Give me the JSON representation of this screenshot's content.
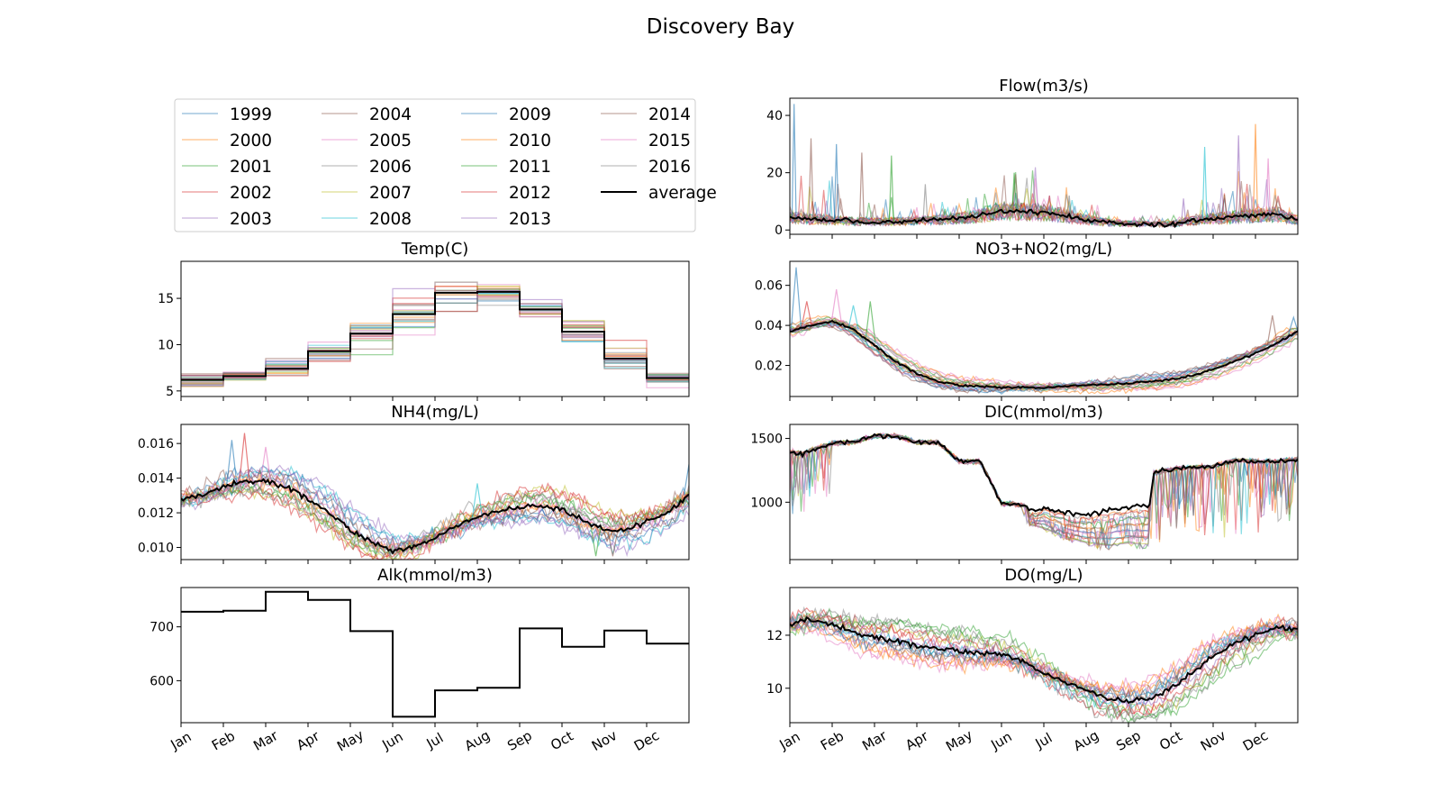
{
  "title": "Discovery Bay",
  "colors": {
    "years": [
      "#1f77b4",
      "#ff7f0e",
      "#2ca02c",
      "#d62728",
      "#9467bd",
      "#8c564b",
      "#e377c2",
      "#7f7f7f",
      "#bcbd22",
      "#17becf",
      "#1f77b4",
      "#ff7f0e",
      "#2ca02c",
      "#d62728",
      "#9467bd",
      "#8c564b",
      "#e377c2",
      "#7f7f7f"
    ],
    "average": "#000000"
  },
  "legend": {
    "placement": "upper-left panel",
    "entries": [
      "1999",
      "2000",
      "2001",
      "2002",
      "2003",
      "2004",
      "2005",
      "2006",
      "2007",
      "2008",
      "2009",
      "2010",
      "2011",
      "2012",
      "2013",
      "2014",
      "2015",
      "2016",
      "average"
    ]
  },
  "chart_data": [
    {
      "type": "line",
      "title": "Flow(m3/s)",
      "xlabel": "",
      "ylabel": "",
      "xticks": [
        "Jan",
        "Feb",
        "Mar",
        "Apr",
        "May",
        "Jun",
        "Jul",
        "Aug",
        "Sep",
        "Oct",
        "Nov",
        "Dec"
      ],
      "xtick_labels_shown": false,
      "ylim": [
        -1.5,
        46
      ],
      "yticks": [
        0,
        20,
        40
      ],
      "years": [
        "1999",
        "2000",
        "2001",
        "2002",
        "2003",
        "2004",
        "2005",
        "2006",
        "2007",
        "2008",
        "2009",
        "2010",
        "2011",
        "2012",
        "2013",
        "2014",
        "2015",
        "2016"
      ],
      "average_points": [
        [
          0,
          4.5
        ],
        [
          0.5,
          3.8
        ],
        [
          1,
          3.5
        ],
        [
          1.5,
          3.0
        ],
        [
          2,
          2.8
        ],
        [
          2.5,
          3.0
        ],
        [
          3,
          3.2
        ],
        [
          3.5,
          3.6
        ],
        [
          4,
          4.0
        ],
        [
          4.5,
          5.2
        ],
        [
          5,
          6.8
        ],
        [
          5.5,
          6.5
        ],
        [
          6,
          6.0
        ],
        [
          6.5,
          5.0
        ],
        [
          7,
          3.5
        ],
        [
          7.5,
          2.6
        ],
        [
          8,
          2.2
        ],
        [
          8.5,
          2.0
        ],
        [
          9,
          2.0
        ],
        [
          9.5,
          3.2
        ],
        [
          10,
          4.0
        ],
        [
          10.5,
          4.5
        ],
        [
          11,
          5.0
        ],
        [
          11.5,
          5.5
        ],
        [
          12,
          3.5
        ]
      ],
      "year_points": [
        [
          0,
          9
        ],
        [
          0.3,
          15
        ],
        [
          0.6,
          6
        ],
        [
          1,
          12
        ],
        [
          1.4,
          6
        ],
        [
          2,
          5
        ],
        [
          2.5,
          8
        ],
        [
          3,
          4
        ],
        [
          4,
          5
        ],
        [
          5,
          10
        ],
        [
          5.5,
          14
        ],
        [
          6,
          11
        ],
        [
          6.5,
          7
        ],
        [
          7,
          4
        ],
        [
          8,
          2
        ],
        [
          9,
          2
        ],
        [
          10,
          5
        ],
        [
          10.5,
          12
        ],
        [
          11,
          9
        ],
        [
          11.5,
          14
        ],
        [
          12,
          4
        ]
      ],
      "year_spikes": [
        [
          0.1,
          44
        ],
        [
          0.5,
          32
        ],
        [
          1.1,
          30
        ],
        [
          1.7,
          27
        ],
        [
          2.4,
          26
        ],
        [
          3.2,
          16
        ],
        [
          5.3,
          20
        ],
        [
          6.6,
          12
        ],
        [
          9.3,
          11
        ],
        [
          9.8,
          29
        ],
        [
          10.6,
          33
        ],
        [
          11.0,
          37
        ],
        [
          11.3,
          25
        ]
      ]
    },
    {
      "type": "line",
      "title": "Temp(C)",
      "xlabel": "",
      "ylabel": "",
      "xticks": [
        "Jan",
        "Feb",
        "Mar",
        "Apr",
        "May",
        "Jun",
        "Jul",
        "Aug",
        "Sep",
        "Oct",
        "Nov",
        "Dec"
      ],
      "xtick_labels_shown": false,
      "ylim": [
        4.4,
        19.0
      ],
      "yticks": [
        5,
        10,
        15
      ],
      "years": [
        "1999",
        "2000",
        "2001",
        "2002",
        "2003",
        "2004",
        "2005",
        "2006",
        "2007",
        "2008",
        "2009",
        "2010",
        "2011",
        "2012",
        "2013",
        "2014",
        "2015",
        "2016"
      ],
      "monthly_average": [
        6.2,
        6.6,
        7.4,
        9.3,
        11.2,
        13.3,
        15.6,
        15.7,
        13.8,
        11.4,
        8.5,
        6.4
      ],
      "monthly_spread": [
        0.6,
        0.8,
        1.2,
        1.4,
        1.5,
        1.8,
        1.5,
        1.2,
        0.8,
        1.0,
        1.2,
        0.8
      ]
    },
    {
      "type": "line",
      "title": "NO3+NO2(mg/L)",
      "xlabel": "",
      "ylabel": "",
      "xticks": [
        "Jan",
        "Feb",
        "Mar",
        "Apr",
        "May",
        "Jun",
        "Jul",
        "Aug",
        "Sep",
        "Oct",
        "Nov",
        "Dec"
      ],
      "xtick_labels_shown": false,
      "ylim": [
        0.0045,
        0.072
      ],
      "yticks": [
        0.02,
        0.04,
        0.06
      ],
      "years": [
        "1999",
        "2000",
        "2001",
        "2002",
        "2003",
        "2004",
        "2005",
        "2006",
        "2007",
        "2008",
        "2009",
        "2010",
        "2011",
        "2012",
        "2013",
        "2014",
        "2015",
        "2016"
      ],
      "average_points": [
        [
          0,
          0.037
        ],
        [
          0.5,
          0.04
        ],
        [
          1,
          0.042
        ],
        [
          1.5,
          0.038
        ],
        [
          2,
          0.03
        ],
        [
          2.5,
          0.022
        ],
        [
          3,
          0.016
        ],
        [
          3.5,
          0.012
        ],
        [
          4,
          0.01
        ],
        [
          4.5,
          0.0095
        ],
        [
          5,
          0.009
        ],
        [
          6,
          0.009
        ],
        [
          7,
          0.01
        ],
        [
          8,
          0.011
        ],
        [
          9,
          0.013
        ],
        [
          9.5,
          0.015
        ],
        [
          10,
          0.018
        ],
        [
          10.5,
          0.022
        ],
        [
          11,
          0.026
        ],
        [
          11.5,
          0.031
        ],
        [
          12,
          0.037
        ]
      ],
      "spread": 0.004,
      "year_spikes": [
        [
          0.15,
          0.069
        ],
        [
          0.4,
          0.052
        ],
        [
          1.1,
          0.058
        ],
        [
          1.5,
          0.05
        ],
        [
          1.9,
          0.052
        ],
        [
          11.4,
          0.045
        ],
        [
          11.9,
          0.044
        ]
      ]
    },
    {
      "type": "line",
      "title": "NH4(mg/L)",
      "xlabel": "",
      "ylabel": "",
      "xticks": [
        "Jan",
        "Feb",
        "Mar",
        "Apr",
        "May",
        "Jun",
        "Jul",
        "Aug",
        "Sep",
        "Oct",
        "Nov",
        "Dec"
      ],
      "xtick_labels_shown": false,
      "ylim": [
        0.0093,
        0.0171
      ],
      "yticks": [
        0.01,
        0.012,
        0.014,
        0.016
      ],
      "years": [
        "1999",
        "2000",
        "2001",
        "2002",
        "2003",
        "2004",
        "2005",
        "2006",
        "2007",
        "2008",
        "2009",
        "2010",
        "2011",
        "2012",
        "2013",
        "2014",
        "2015",
        "2016"
      ],
      "average_points": [
        [
          0,
          0.0128
        ],
        [
          0.5,
          0.013
        ],
        [
          1,
          0.0135
        ],
        [
          1.5,
          0.0138
        ],
        [
          2,
          0.0138
        ],
        [
          2.5,
          0.0135
        ],
        [
          3,
          0.0128
        ],
        [
          3.5,
          0.012
        ],
        [
          4,
          0.011
        ],
        [
          4.5,
          0.0103
        ],
        [
          5,
          0.0098
        ],
        [
          5.5,
          0.01
        ],
        [
          6,
          0.0106
        ],
        [
          6.5,
          0.0112
        ],
        [
          7,
          0.0117
        ],
        [
          7.5,
          0.0121
        ],
        [
          8,
          0.0123
        ],
        [
          8.5,
          0.0124
        ],
        [
          9,
          0.0122
        ],
        [
          9.5,
          0.0116
        ],
        [
          10,
          0.011
        ],
        [
          10.5,
          0.011
        ],
        [
          11,
          0.0115
        ],
        [
          11.5,
          0.012
        ],
        [
          12,
          0.013
        ]
      ],
      "spread": 0.0012,
      "year_spikes": [
        [
          1.2,
          0.0162
        ],
        [
          1.5,
          0.0166
        ],
        [
          2.0,
          0.0158
        ],
        [
          7.0,
          0.0137
        ],
        [
          9.8,
          0.0095
        ],
        [
          10.2,
          0.0095
        ],
        [
          12,
          0.0148
        ]
      ]
    },
    {
      "type": "line",
      "title": "DIC(mmol/m3)",
      "xlabel": "",
      "ylabel": "",
      "xticks": [
        "Jan",
        "Feb",
        "Mar",
        "Apr",
        "May",
        "Jun",
        "Jul",
        "Aug",
        "Sep",
        "Oct",
        "Nov",
        "Dec"
      ],
      "xtick_labels_shown": false,
      "ylim": [
        550,
        1610
      ],
      "yticks": [
        1000,
        1500
      ],
      "years": [
        "1999",
        "2000",
        "2001",
        "2002",
        "2003",
        "2004",
        "2005",
        "2006",
        "2007",
        "2008",
        "2009",
        "2010",
        "2011",
        "2012",
        "2013",
        "2014",
        "2015",
        "2016"
      ],
      "average_points": [
        [
          0,
          1400
        ],
        [
          0.3,
          1380
        ],
        [
          0.6,
          1420
        ],
        [
          1,
          1460
        ],
        [
          1.5,
          1470
        ],
        [
          2,
          1520
        ],
        [
          2.5,
          1520
        ],
        [
          3,
          1470
        ],
        [
          3.5,
          1470
        ],
        [
          4,
          1320
        ],
        [
          4.5,
          1320
        ],
        [
          5,
          990
        ],
        [
          5.5,
          980
        ],
        [
          5.8,
          920
        ],
        [
          6,
          960
        ],
        [
          6.5,
          920
        ],
        [
          7,
          900
        ],
        [
          7.5,
          940
        ],
        [
          8,
          960
        ],
        [
          8.5,
          970
        ],
        [
          8.6,
          1230
        ],
        [
          9,
          1260
        ],
        [
          9.5,
          1270
        ],
        [
          10,
          1280
        ],
        [
          10.5,
          1330
        ],
        [
          11,
          1320
        ],
        [
          11.5,
          1320
        ],
        [
          12,
          1340
        ]
      ],
      "year_low_points": [
        [
          0.3,
          900
        ],
        [
          0.6,
          1050
        ],
        [
          5.8,
          800
        ],
        [
          6.5,
          700
        ],
        [
          7,
          650
        ],
        [
          7.5,
          620
        ],
        [
          8,
          640
        ],
        [
          8.6,
          620
        ],
        [
          9,
          780
        ],
        [
          9.5,
          730
        ],
        [
          10,
          700
        ],
        [
          10.5,
          720
        ],
        [
          11,
          760
        ],
        [
          11.5,
          780
        ],
        [
          12,
          820
        ]
      ]
    },
    {
      "type": "line",
      "title": "Alk(mmol/m3)",
      "xlabel": "",
      "ylabel": "",
      "xticks": [
        "Jan",
        "Feb",
        "Mar",
        "Apr",
        "May",
        "Jun",
        "Jul",
        "Aug",
        "Sep",
        "Oct",
        "Nov",
        "Dec"
      ],
      "ylim": [
        522,
        773
      ],
      "yticks": [
        600,
        700
      ],
      "monthly_average": [
        728,
        730,
        765,
        750,
        692,
        533,
        582,
        587,
        697,
        663,
        693,
        669
      ]
    },
    {
      "type": "line",
      "title": "DO(mg/L)",
      "xlabel": "",
      "ylabel": "",
      "xticks": [
        "Jan",
        "Feb",
        "Mar",
        "Apr",
        "May",
        "Jun",
        "Jul",
        "Aug",
        "Sep",
        "Oct",
        "Nov",
        "Dec"
      ],
      "ylim": [
        8.7,
        13.8
      ],
      "yticks": [
        10,
        12
      ],
      "years": [
        "1999",
        "2000",
        "2001",
        "2002",
        "2003",
        "2004",
        "2005",
        "2006",
        "2007",
        "2008",
        "2009",
        "2010",
        "2011",
        "2012",
        "2013",
        "2014",
        "2015",
        "2016"
      ],
      "average_points": [
        [
          0,
          12.4
        ],
        [
          0.4,
          12.6
        ],
        [
          1,
          12.4
        ],
        [
          1.5,
          12.1
        ],
        [
          2,
          11.9
        ],
        [
          2.5,
          11.8
        ],
        [
          3,
          11.6
        ],
        [
          3.5,
          11.5
        ],
        [
          4,
          11.4
        ],
        [
          4.5,
          11.3
        ],
        [
          5,
          11.3
        ],
        [
          5.5,
          11.0
        ],
        [
          6,
          10.6
        ],
        [
          6.5,
          10.2
        ],
        [
          7,
          9.9
        ],
        [
          7.5,
          9.6
        ],
        [
          8,
          9.5
        ],
        [
          8.5,
          9.6
        ],
        [
          9,
          10.0
        ],
        [
          9.5,
          10.6
        ],
        [
          10,
          11.2
        ],
        [
          10.5,
          11.7
        ],
        [
          11,
          12.0
        ],
        [
          11.5,
          12.3
        ],
        [
          12,
          12.2
        ]
      ],
      "spread": 0.8
    }
  ]
}
